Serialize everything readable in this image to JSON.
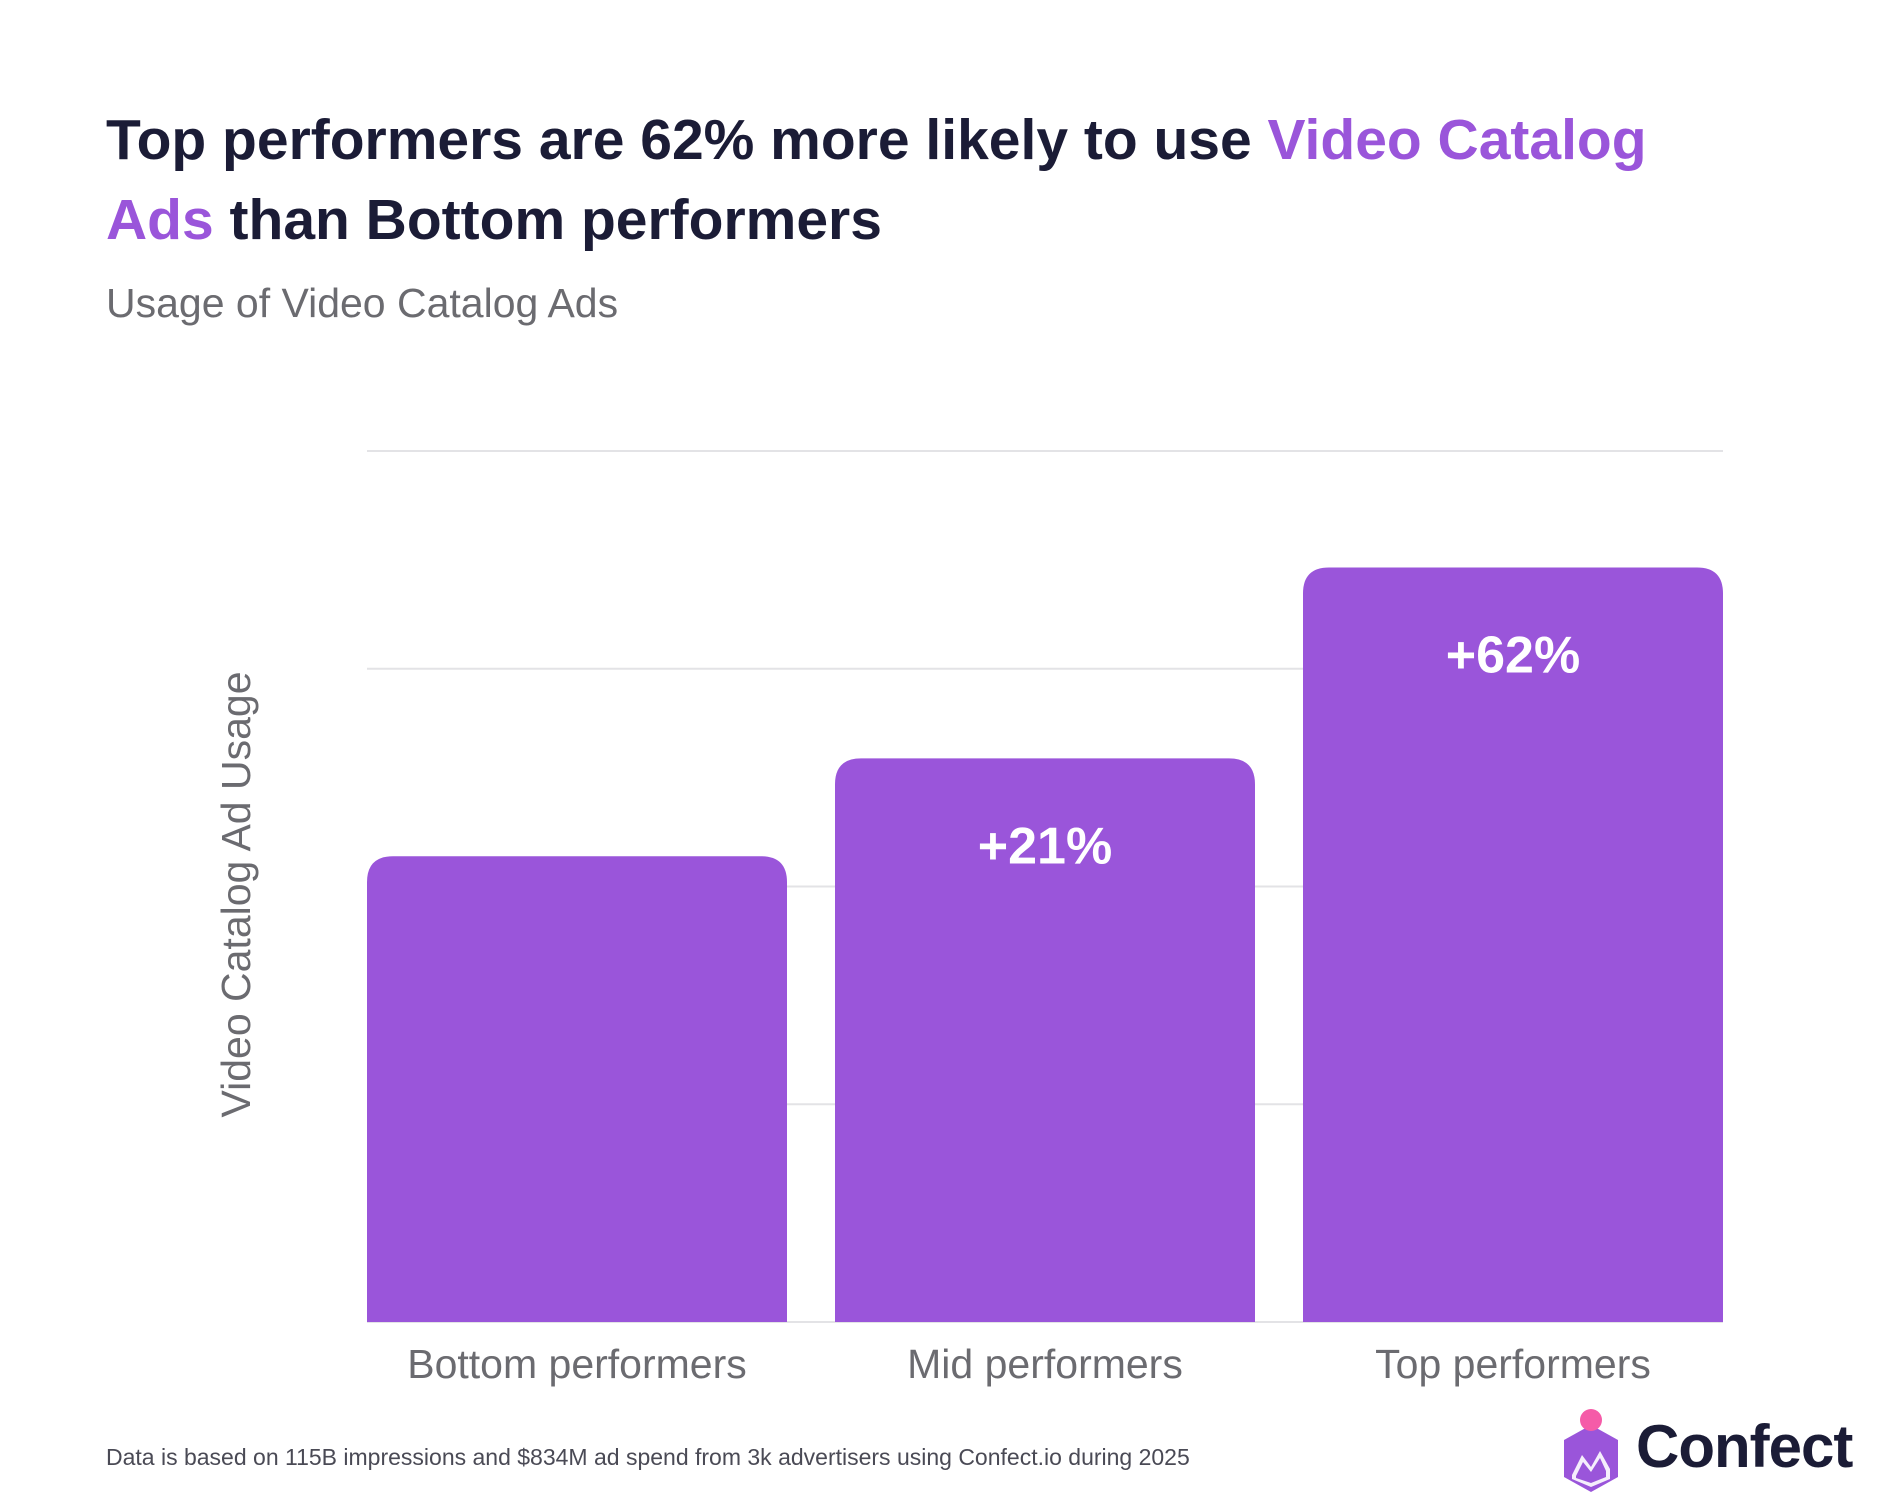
{
  "header": {
    "title_part1": "Top performers are 62% more likely to use ",
    "title_highlight1": "Video Catalog",
    "title_highlight2": "Ads",
    "title_part2": " than Bottom performers",
    "subtitle": "Usage of Video Catalog Ads"
  },
  "colors": {
    "bar": "#9a55da",
    "highlight": "#9a55da",
    "title": "#1b1c36",
    "label": "#6b6b70",
    "grid": "#e3e3e6",
    "logo_pink": "#f55ba8"
  },
  "chart_data": {
    "type": "bar",
    "categories": [
      "Bottom performers",
      "Mid performers",
      "Top performers"
    ],
    "values": [
      1.0,
      1.21,
      1.62
    ],
    "data_labels": [
      "",
      "+21%",
      "+62%"
    ],
    "ylabel": "Video Catalog Ad Usage",
    "xlabel": "",
    "ylim": [
      0,
      1.87
    ],
    "grid": true,
    "legend": "none"
  },
  "footer": {
    "note": "Data is based on 115B impressions and $834M ad spend from 3k advertisers using Confect.io during 2025",
    "logo_text": "Confect",
    "logo_icon": "confect-logo-icon"
  }
}
